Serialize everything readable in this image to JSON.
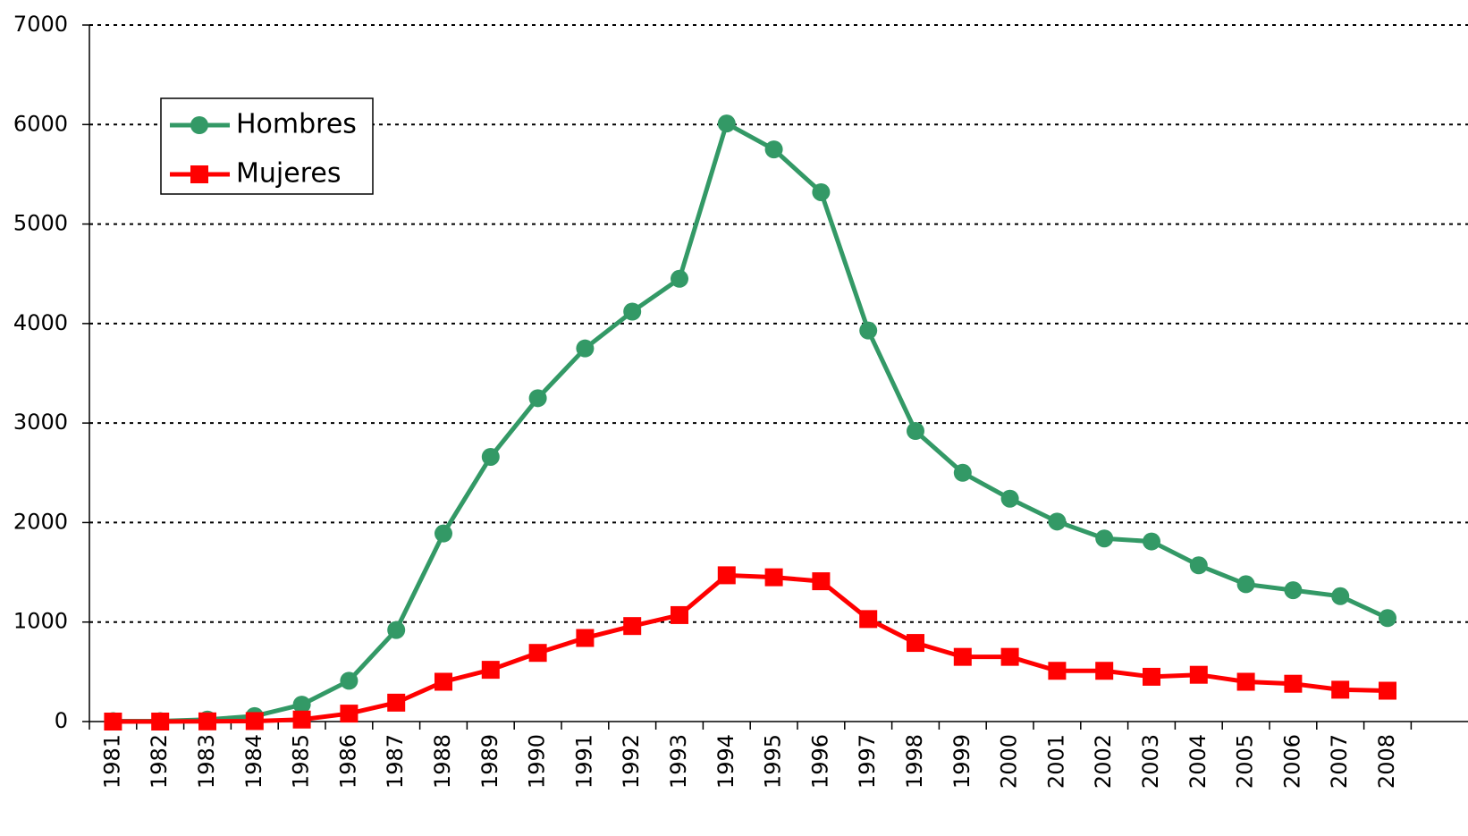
{
  "chart_data": {
    "type": "line",
    "categories": [
      "1981",
      "1982",
      "1983",
      "1984",
      "1985",
      "1986",
      "1987",
      "1988",
      "1989",
      "1990",
      "1991",
      "1992",
      "1993",
      "1994",
      "1995",
      "1996",
      "1997",
      "1998",
      "1999",
      "2000",
      "2001",
      "2002",
      "2003",
      "2004",
      "2005",
      "2006",
      "2007",
      "2008"
    ],
    "series": [
      {
        "name": "Hombres",
        "color": "#339966",
        "marker": "circle",
        "values": [
          5,
          5,
          20,
          55,
          170,
          410,
          920,
          1890,
          2660,
          3250,
          3750,
          4120,
          4450,
          6010,
          5750,
          5320,
          3930,
          2920,
          2500,
          2240,
          2010,
          1840,
          1810,
          1570,
          1380,
          1320,
          1260,
          1040
        ]
      },
      {
        "name": "Mujeres",
        "color": "#ff0000",
        "marker": "square",
        "values": [
          0,
          0,
          2,
          5,
          20,
          80,
          190,
          400,
          520,
          690,
          840,
          960,
          1070,
          1470,
          1450,
          1410,
          1030,
          790,
          650,
          650,
          510,
          510,
          450,
          470,
          400,
          380,
          320,
          310
        ]
      }
    ],
    "ylim": [
      0,
      7000
    ],
    "yticks": [
      0,
      1000,
      2000,
      3000,
      4000,
      5000,
      6000,
      7000
    ],
    "grid": true
  }
}
